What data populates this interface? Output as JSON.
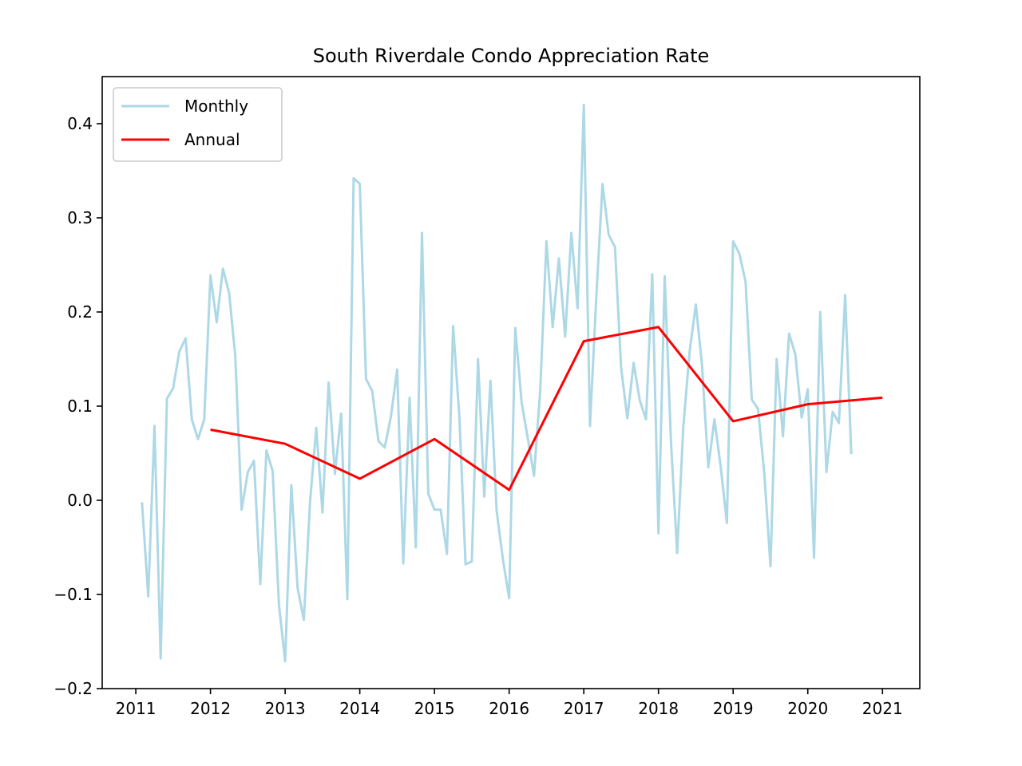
{
  "chart_data": {
    "type": "line",
    "title": "South Riverdale Condo Appreciation Rate",
    "xlabel": "",
    "ylabel": "",
    "xlim": [
      2010.55,
      2021.5
    ],
    "ylim": [
      -0.2,
      0.45
    ],
    "x_ticks": [
      2011,
      2012,
      2013,
      2014,
      2015,
      2016,
      2017,
      2018,
      2019,
      2020,
      2021
    ],
    "x_tick_labels": [
      "2011",
      "2012",
      "2013",
      "2014",
      "2015",
      "2016",
      "2017",
      "2018",
      "2019",
      "2020",
      "2021"
    ],
    "y_ticks": [
      -0.2,
      -0.1,
      0.0,
      0.1,
      0.2,
      0.3,
      0.4
    ],
    "y_tick_labels": [
      "−0.2",
      "−0.1",
      "0.0",
      "0.1",
      "0.2",
      "0.3",
      "0.4"
    ],
    "grid": false,
    "legend_position": "top-left",
    "series": [
      {
        "name": "Monthly",
        "color": "#add8e6",
        "x": [
          2011.083,
          2011.167,
          2011.25,
          2011.333,
          2011.417,
          2011.5,
          2011.583,
          2011.667,
          2011.75,
          2011.833,
          2011.917,
          2012.0,
          2012.083,
          2012.167,
          2012.25,
          2012.333,
          2012.417,
          2012.5,
          2012.583,
          2012.667,
          2012.75,
          2012.833,
          2012.917,
          2013.0,
          2013.083,
          2013.167,
          2013.25,
          2013.333,
          2013.417,
          2013.5,
          2013.583,
          2013.667,
          2013.75,
          2013.833,
          2013.917,
          2014.0,
          2014.083,
          2014.167,
          2014.25,
          2014.333,
          2014.417,
          2014.5,
          2014.583,
          2014.667,
          2014.75,
          2014.833,
          2014.917,
          2015.0,
          2015.083,
          2015.167,
          2015.25,
          2015.333,
          2015.417,
          2015.5,
          2015.583,
          2015.667,
          2015.75,
          2015.833,
          2015.917,
          2016.0,
          2016.083,
          2016.167,
          2016.25,
          2016.333,
          2016.417,
          2016.5,
          2016.583,
          2016.667,
          2016.75,
          2016.833,
          2016.917,
          2017.0,
          2017.083,
          2017.167,
          2017.25,
          2017.333,
          2017.417,
          2017.5,
          2017.583,
          2017.667,
          2017.75,
          2017.833,
          2017.917,
          2018.0,
          2018.083,
          2018.167,
          2018.25,
          2018.333,
          2018.417,
          2018.5,
          2018.583,
          2018.667,
          2018.75,
          2018.833,
          2018.917,
          2019.0,
          2019.083,
          2019.167,
          2019.25,
          2019.333,
          2019.417,
          2019.5,
          2019.583,
          2019.667,
          2019.75,
          2019.833,
          2019.917,
          2020.0,
          2020.083,
          2020.167,
          2020.25,
          2020.333,
          2020.417,
          2020.5,
          2020.583
        ],
        "values": [
          -0.002,
          -0.102,
          0.079,
          -0.168,
          0.108,
          0.119,
          0.158,
          0.172,
          0.086,
          0.065,
          0.086,
          0.239,
          0.189,
          0.246,
          0.22,
          0.153,
          -0.01,
          0.03,
          0.042,
          -0.089,
          0.053,
          0.031,
          -0.111,
          -0.171,
          0.016,
          -0.093,
          -0.127,
          -0.002,
          0.077,
          -0.013,
          0.125,
          0.028,
          0.092,
          -0.105,
          0.342,
          0.336,
          0.129,
          0.116,
          0.063,
          0.056,
          0.089,
          0.139,
          -0.067,
          0.109,
          -0.05,
          0.284,
          0.007,
          -0.01,
          -0.01,
          -0.057,
          0.185,
          0.089,
          -0.068,
          -0.065,
          0.15,
          0.004,
          0.127,
          -0.011,
          -0.063,
          -0.104,
          0.183,
          0.104,
          0.066,
          0.026,
          0.118,
          0.275,
          0.184,
          0.257,
          0.174,
          0.284,
          0.204,
          0.42,
          0.079,
          0.215,
          0.336,
          0.282,
          0.269,
          0.141,
          0.087,
          0.146,
          0.106,
          0.086,
          0.24,
          -0.035,
          0.238,
          0.063,
          -0.056,
          0.078,
          0.158,
          0.208,
          0.144,
          0.035,
          0.086,
          0.036,
          -0.024,
          0.275,
          0.262,
          0.232,
          0.107,
          0.097,
          0.029,
          -0.07,
          0.15,
          0.068,
          0.177,
          0.155,
          0.088,
          0.118,
          -0.061,
          0.2,
          0.03,
          0.094,
          0.082,
          0.218,
          0.049
        ]
      },
      {
        "name": "Annual",
        "color": "#ff0000",
        "x": [
          2012,
          2013,
          2014,
          2015,
          2016,
          2017,
          2018,
          2019,
          2020,
          2021
        ],
        "values": [
          0.075,
          0.06,
          0.023,
          0.065,
          0.011,
          0.169,
          0.184,
          0.084,
          0.102,
          0.109
        ]
      }
    ]
  }
}
